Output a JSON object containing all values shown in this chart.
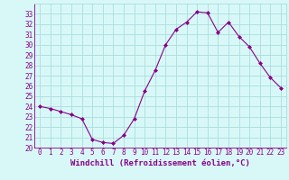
{
  "x": [
    0,
    1,
    2,
    3,
    4,
    5,
    6,
    7,
    8,
    9,
    10,
    11,
    12,
    13,
    14,
    15,
    16,
    17,
    18,
    19,
    20,
    21,
    22,
    23
  ],
  "y": [
    24.0,
    23.8,
    23.5,
    23.2,
    22.8,
    20.8,
    20.5,
    20.4,
    21.2,
    22.8,
    25.5,
    27.5,
    30.0,
    31.5,
    32.2,
    33.2,
    33.1,
    31.2,
    32.2,
    30.8,
    29.8,
    28.2,
    26.8,
    25.8
  ],
  "line_color": "#880088",
  "marker": "D",
  "marker_size": 2,
  "bg_color": "#d8f8f8",
  "grid_color": "#aadddd",
  "axis_label_color": "#880088",
  "tick_label_color": "#880088",
  "xlabel": "Windchill (Refroidissement éolien,°C)",
  "ylim": [
    20,
    34
  ],
  "xlim": [
    -0.5,
    23.5
  ],
  "yticks": [
    20,
    21,
    22,
    23,
    24,
    25,
    26,
    27,
    28,
    29,
    30,
    31,
    32,
    33
  ],
  "xticks": [
    0,
    1,
    2,
    3,
    4,
    5,
    6,
    7,
    8,
    9,
    10,
    11,
    12,
    13,
    14,
    15,
    16,
    17,
    18,
    19,
    20,
    21,
    22,
    23
  ],
  "axis_fontsize": 6.5,
  "tick_fontsize": 5.5
}
